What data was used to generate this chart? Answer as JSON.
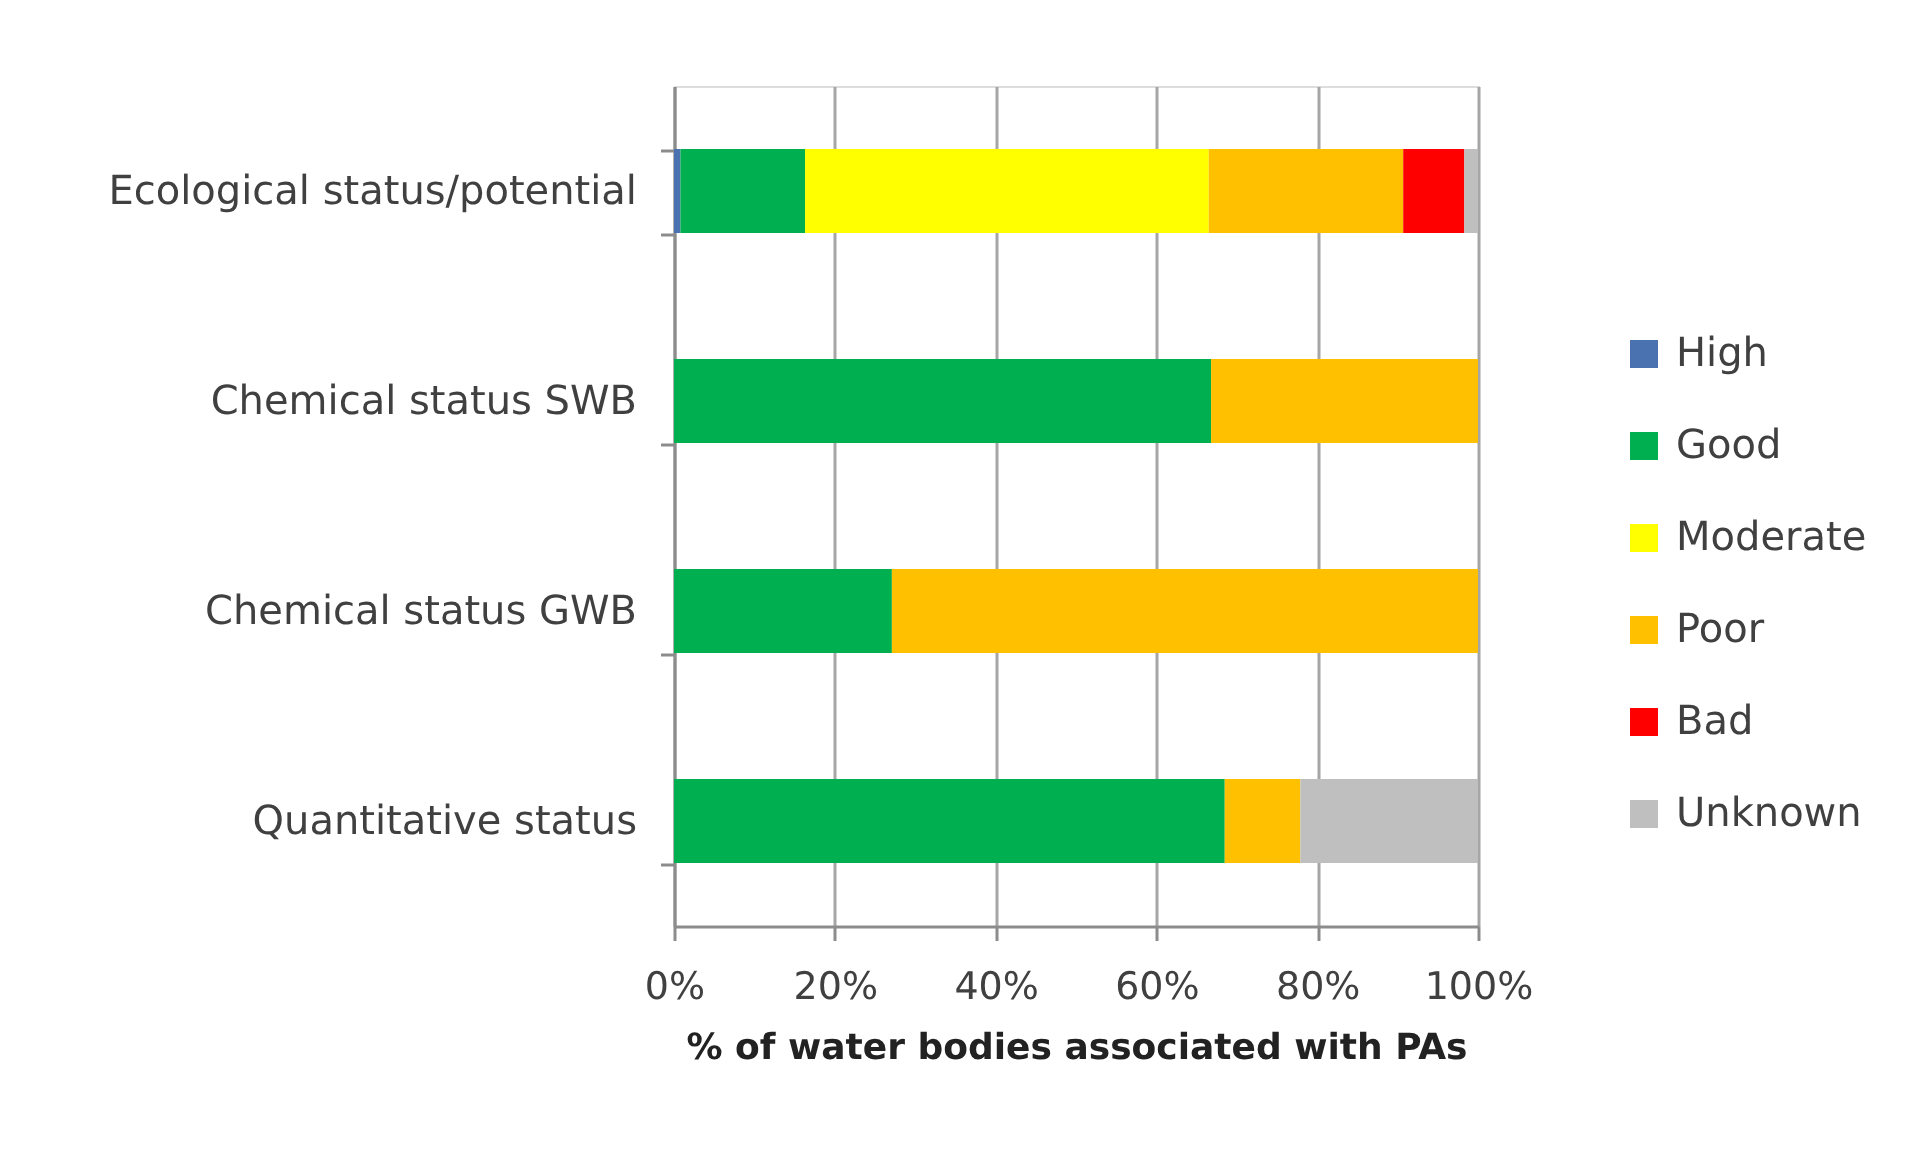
{
  "chart_data": {
    "type": "bar",
    "orientation": "horizontal",
    "stacked": true,
    "categories": [
      "Ecological status/potential",
      "Chemical status SWB",
      "Chemical status GWB",
      "Quantitative status"
    ],
    "series": [
      {
        "name": "High",
        "color": "#4a72b0",
        "values": [
          0.8,
          null,
          null,
          null
        ]
      },
      {
        "name": "Good",
        "color": "#00b050",
        "values": [
          15.5,
          66.8,
          27.1,
          68.5
        ]
      },
      {
        "name": "Moderate",
        "color": "#ffff00",
        "values": [
          50.2,
          null,
          null,
          null
        ]
      },
      {
        "name": "Poor",
        "color": "#ffc000",
        "values": [
          24.2,
          33.2,
          72.9,
          9.4
        ]
      },
      {
        "name": "Bad",
        "color": "#ff0000",
        "values": [
          7.6,
          null,
          null,
          null
        ]
      },
      {
        "name": "Unknown",
        "color": "#bfbfbf",
        "values": [
          1.7,
          null,
          null,
          22.1
        ]
      }
    ],
    "xlabel": "% of water bodies associated with PAs",
    "xlim": [
      0,
      100
    ],
    "xticks": [
      {
        "value": 0,
        "label": "0%"
      },
      {
        "value": 20,
        "label": "20%"
      },
      {
        "value": 40,
        "label": "40%"
      },
      {
        "value": 60,
        "label": "60%"
      },
      {
        "value": 80,
        "label": "80%"
      },
      {
        "value": 100,
        "label": "100%"
      }
    ],
    "grid": "x",
    "legend": "right"
  }
}
